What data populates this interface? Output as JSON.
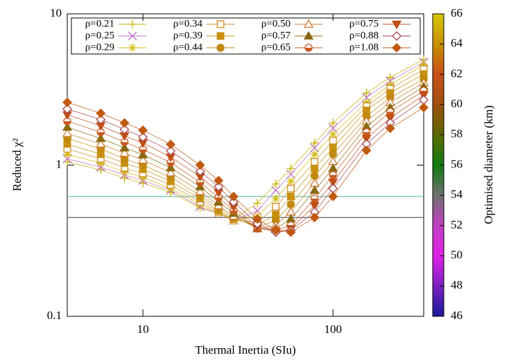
{
  "chart_data": {
    "type": "line",
    "x_label": "Thermal Inertia (SIu)",
    "y_label": "Reduced χ²",
    "log_x": true,
    "log_y": true,
    "xlim": [
      4,
      300
    ],
    "xticks": [
      10,
      100
    ],
    "ylim": [
      0.1,
      10
    ],
    "yticks": [
      0.1,
      1,
      10
    ],
    "x": [
      4,
      6,
      8,
      10,
      14,
      20,
      25,
      30,
      40,
      50,
      60,
      80,
      100,
      150,
      200,
      300
    ],
    "series": [
      {
        "name": "ρ=0.21",
        "marker": "plus",
        "color": "#c8b000",
        "values": [
          1.05,
          0.93,
          0.82,
          0.76,
          0.66,
          0.52,
          0.48,
          0.44,
          0.56,
          0.75,
          0.95,
          1.4,
          1.9,
          3.0,
          3.8,
          5.0
        ]
      },
      {
        "name": "ρ=0.25",
        "marker": "cross",
        "color": "#c070c8",
        "values": [
          1.1,
          0.97,
          0.86,
          0.79,
          0.68,
          0.53,
          0.48,
          0.43,
          0.5,
          0.68,
          0.87,
          1.3,
          1.75,
          2.8,
          3.6,
          4.8
        ]
      },
      {
        "name": "ρ=0.29",
        "marker": "star",
        "color": "#d0b800",
        "values": [
          1.18,
          1.03,
          0.9,
          0.83,
          0.7,
          0.55,
          0.48,
          0.43,
          0.46,
          0.6,
          0.78,
          1.18,
          1.6,
          2.6,
          3.4,
          4.6
        ]
      },
      {
        "name": "ρ=0.34",
        "marker": "square-open",
        "color": "#d08a20",
        "values": [
          1.28,
          1.1,
          0.96,
          0.88,
          0.74,
          0.57,
          0.49,
          0.43,
          0.42,
          0.53,
          0.7,
          1.05,
          1.45,
          2.45,
          3.2,
          4.3
        ]
      },
      {
        "name": "ρ=0.39",
        "marker": "square",
        "color": "#c89010",
        "values": [
          1.38,
          1.18,
          1.03,
          0.94,
          0.78,
          0.6,
          0.5,
          0.44,
          0.4,
          0.47,
          0.62,
          0.95,
          1.3,
          2.3,
          3.0,
          4.0
        ]
      },
      {
        "name": "ρ=0.44",
        "marker": "circle",
        "color": "#c08a10",
        "values": [
          1.5,
          1.28,
          1.1,
          1.0,
          0.83,
          0.63,
          0.52,
          0.45,
          0.39,
          0.43,
          0.55,
          0.85,
          1.18,
          2.1,
          2.8,
          3.7
        ]
      },
      {
        "name": "ρ=0.50",
        "marker": "triangle-open",
        "color": "#d07a30",
        "values": [
          1.62,
          1.38,
          1.2,
          1.08,
          0.89,
          0.67,
          0.54,
          0.46,
          0.38,
          0.4,
          0.49,
          0.76,
          1.06,
          1.95,
          2.6,
          3.5
        ]
      },
      {
        "name": "ρ=0.57",
        "marker": "triangle",
        "color": "#8a6a10",
        "values": [
          1.78,
          1.5,
          1.3,
          1.17,
          0.96,
          0.72,
          0.57,
          0.48,
          0.38,
          0.38,
          0.44,
          0.68,
          0.95,
          1.8,
          2.4,
          3.3
        ]
      },
      {
        "name": "ρ=0.65",
        "marker": "circle-half",
        "color": "#c85a20",
        "values": [
          1.95,
          1.65,
          1.42,
          1.27,
          1.04,
          0.77,
          0.61,
          0.5,
          0.38,
          0.37,
          0.4,
          0.6,
          0.86,
          1.65,
          2.25,
          3.1
        ]
      },
      {
        "name": "ρ=0.75",
        "marker": "triangle-down",
        "color": "#c05018",
        "values": [
          2.15,
          1.82,
          1.56,
          1.4,
          1.13,
          0.84,
          0.66,
          0.53,
          0.39,
          0.36,
          0.38,
          0.54,
          0.77,
          1.5,
          2.05,
          2.9
        ]
      },
      {
        "name": "ρ=0.88",
        "marker": "diamond-open",
        "color": "#a04050",
        "values": [
          2.35,
          2.0,
          1.72,
          1.53,
          1.24,
          0.91,
          0.72,
          0.57,
          0.41,
          0.36,
          0.37,
          0.49,
          0.7,
          1.38,
          1.9,
          2.7
        ]
      },
      {
        "name": "ρ=1.08",
        "marker": "diamond",
        "color": "#c05a10",
        "values": [
          2.6,
          2.2,
          1.9,
          1.7,
          1.37,
          1.0,
          0.79,
          0.62,
          0.44,
          0.37,
          0.36,
          0.45,
          0.62,
          1.25,
          1.75,
          2.4
        ]
      }
    ],
    "hlines": [
      {
        "value": 0.62,
        "color": "#6cc4a8"
      },
      {
        "value": 0.45,
        "color": "#606060"
      }
    ],
    "colorbar": {
      "label": "Optimised diameter (km)",
      "lim": [
        46,
        66
      ],
      "ticks": [
        46,
        48,
        50,
        52,
        54,
        56,
        58,
        60,
        62,
        64,
        66
      ],
      "colors": [
        "#1a1a9a",
        "#7a20c0",
        "#e020e8",
        "#c040c0",
        "#707070",
        "#107a10",
        "#5a6a00",
        "#a05010",
        "#c85018",
        "#c89000",
        "#d4c800"
      ]
    }
  }
}
